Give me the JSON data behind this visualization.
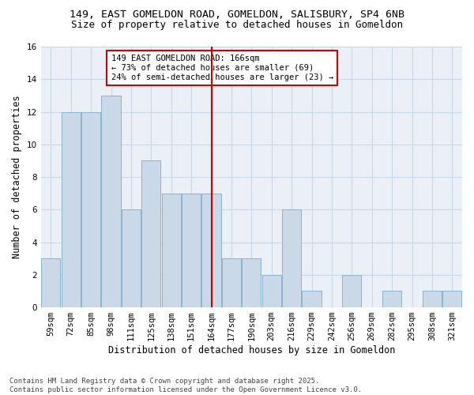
{
  "title_line1": "149, EAST GOMELDON ROAD, GOMELDON, SALISBURY, SP4 6NB",
  "title_line2": "Size of property relative to detached houses in Gomeldon",
  "xlabel": "Distribution of detached houses by size in Gomeldon",
  "ylabel": "Number of detached properties",
  "categories": [
    "59sqm",
    "72sqm",
    "85sqm",
    "98sqm",
    "111sqm",
    "125sqm",
    "138sqm",
    "151sqm",
    "164sqm",
    "177sqm",
    "190sqm",
    "203sqm",
    "216sqm",
    "229sqm",
    "242sqm",
    "256sqm",
    "269sqm",
    "282sqm",
    "295sqm",
    "308sqm",
    "321sqm"
  ],
  "values": [
    3,
    12,
    12,
    13,
    6,
    9,
    7,
    7,
    7,
    3,
    3,
    2,
    6,
    1,
    0,
    2,
    0,
    1,
    0,
    1,
    1
  ],
  "bar_color": "#c9d9e8",
  "bar_edgecolor": "#8ab4cc",
  "vline_index": 8,
  "vline_color": "#cc0000",
  "annotation_text": "149 EAST GOMELDON ROAD: 166sqm\n← 73% of detached houses are smaller (69)\n24% of semi-detached houses are larger (23) →",
  "annotation_box_color": "#cc0000",
  "ylim": [
    0,
    16
  ],
  "yticks": [
    0,
    2,
    4,
    6,
    8,
    10,
    12,
    14,
    16
  ],
  "grid_color": "#c8d8e8",
  "background_color": "#eaf0f6",
  "footer_text": "Contains HM Land Registry data © Crown copyright and database right 2025.\nContains public sector information licensed under the Open Government Licence v3.0.",
  "title_fontsize": 9.5,
  "subtitle_fontsize": 9,
  "axis_label_fontsize": 8.5,
  "tick_fontsize": 7.5,
  "annotation_fontsize": 7.5,
  "footer_fontsize": 6.5
}
